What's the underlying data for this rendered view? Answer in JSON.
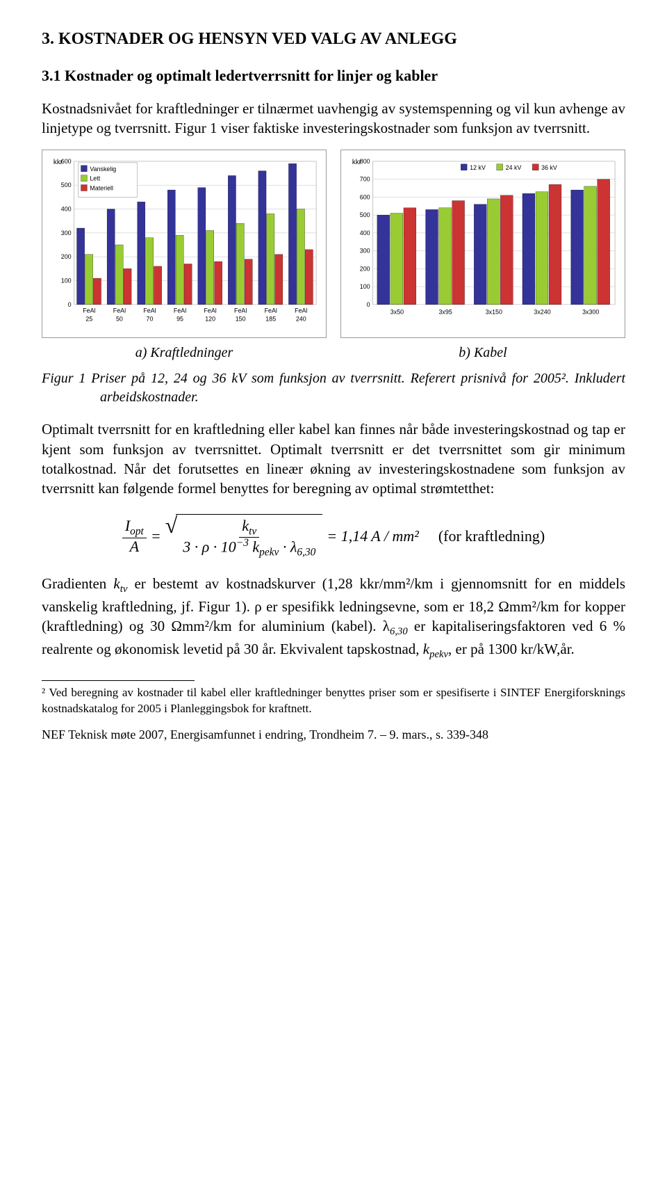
{
  "heading_main": "3.   KOSTNADER OG HENSYN VED VALG AV ANLEGG",
  "heading_sub": "3.1 Kostnader og optimalt ledertverrsnitt for linjer og kabler",
  "para1": "Kostnadsnivået for kraftledninger er tilnærmet uavhengig av systemspenning og vil kun avhenge av linjetype og tverrsnitt. Figur 1 viser faktiske investeringskostnader som funksjon av tverrsnitt.",
  "chart_a": {
    "type": "bar",
    "y_label": "kkr",
    "ylim": [
      0,
      600
    ],
    "ytick_step": 100,
    "legend": [
      "Vanskelig",
      "Lett",
      "Materiell"
    ],
    "legend_colors": [
      "#333399",
      "#99cc33",
      "#cc3333"
    ],
    "categories": [
      "FeAl 25",
      "FeAl 50",
      "FeAl 70",
      "FeAl 95",
      "FeAl 120",
      "FeAl 150",
      "FeAl 185",
      "FeAl 240"
    ],
    "series": [
      {
        "name": "Vanskelig",
        "color": "#333399",
        "values": [
          320,
          400,
          430,
          480,
          490,
          540,
          560,
          590
        ]
      },
      {
        "name": "Lett",
        "color": "#99cc33",
        "values": [
          210,
          250,
          280,
          290,
          310,
          340,
          380,
          400
        ]
      },
      {
        "name": "Materiell",
        "color": "#cc3333",
        "values": [
          110,
          150,
          160,
          170,
          180,
          190,
          210,
          230
        ]
      }
    ],
    "grid_color": "#bfbfbf",
    "background_color": "#ffffff",
    "label_fontsize": 9
  },
  "chart_b": {
    "type": "bar",
    "y_label": "kkr",
    "ylim": [
      0,
      800
    ],
    "ytick_step": 100,
    "legend": [
      "12 kV",
      "24 kV",
      "36 kV"
    ],
    "legend_colors": [
      "#333399",
      "#99cc33",
      "#cc3333"
    ],
    "categories": [
      "3x50",
      "3x95",
      "3x150",
      "3x240",
      "3x300"
    ],
    "series": [
      {
        "name": "12 kV",
        "color": "#333399",
        "values": [
          500,
          530,
          560,
          620,
          640
        ]
      },
      {
        "name": "24 kV",
        "color": "#99cc33",
        "values": [
          510,
          540,
          590,
          630,
          660
        ]
      },
      {
        "name": "36 kV",
        "color": "#cc3333",
        "values": [
          540,
          580,
          610,
          670,
          700
        ]
      }
    ],
    "grid_color": "#bfbfbf",
    "background_color": "#ffffff",
    "label_fontsize": 9
  },
  "caption_a": "a) Kraftledninger",
  "caption_b": "b) Kabel",
  "fig_caption": "Figur 1  Priser på 12, 24 og 36 kV som funksjon av tverrsnitt. Referert prisnivå for 2005². Inkludert arbeidskostnader.",
  "para2": "Optimalt tverrsnitt for en kraftledning eller kabel kan finnes når både investeringskostnad og tap er kjent som funksjon av tverrsnittet. Optimalt tverrsnitt er det tverrsnittet som gir minimum totalkostnad. Når det forutsettes en lineær økning av investeringskostnadene som funksjon av tverrsnitt kan følgende formel benyttes for beregning av optimal strømtetthet:",
  "formula": {
    "lhs_num": "I",
    "lhs_num_sub": "opt",
    "lhs_den": "A",
    "rhs_num": "k",
    "rhs_num_sub": "tv",
    "rhs_den_parts": [
      "3 · ρ · 10",
      "−3",
      " k",
      "pekv",
      " · λ",
      "6,30"
    ],
    "result": "= 1,14 A / mm²",
    "note": "(for kraftledning)"
  },
  "para3_parts": {
    "p1": "Gradienten ",
    "ktv": "k",
    "ktv_sub": "tv",
    "p2": " er bestemt av kostnadskurver (1,28 kkr/mm²/km i gjennomsnitt for en middels vanskelig kraftledning, jf. Figur 1). ρ er spesifikk ledningsevne, som er 18,2 Ωmm²/km for kopper (kraftledning) og 30 Ωmm²/km for aluminium (kabel). λ",
    "lam_sub": "6,30",
    "p3": " er kapitaliseringsfaktoren ved  6 % realrente og økonomisk levetid på 30 år. Ekvivalent tapskostnad, ",
    "kpekv": "k",
    "kpekv_sub": "pekv",
    "p4": ", er på 1300 kr/kW,år."
  },
  "footnote": "² Ved beregning av kostnader til kabel eller kraftledninger benyttes priser som er spesifiserte i SINTEF Energiforsknings kostnadskatalog for 2005 i Planleggingsbok for kraftnett.",
  "footer": "NEF Teknisk møte 2007, Energisamfunnet i endring, Trondheim 7. – 9. mars., s. 339-348"
}
